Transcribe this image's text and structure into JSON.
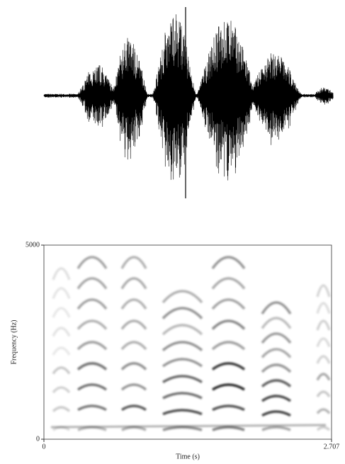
{
  "chart_data": {
    "type": "spectrogram",
    "x_label": "Time (s)",
    "y_label": "Frequency (Hz)",
    "xlim": [
      0,
      2.707
    ],
    "xticks": [
      0,
      2.707
    ],
    "ylim": [
      0,
      5000
    ],
    "yticks": [
      0,
      5000
    ]
  }
}
